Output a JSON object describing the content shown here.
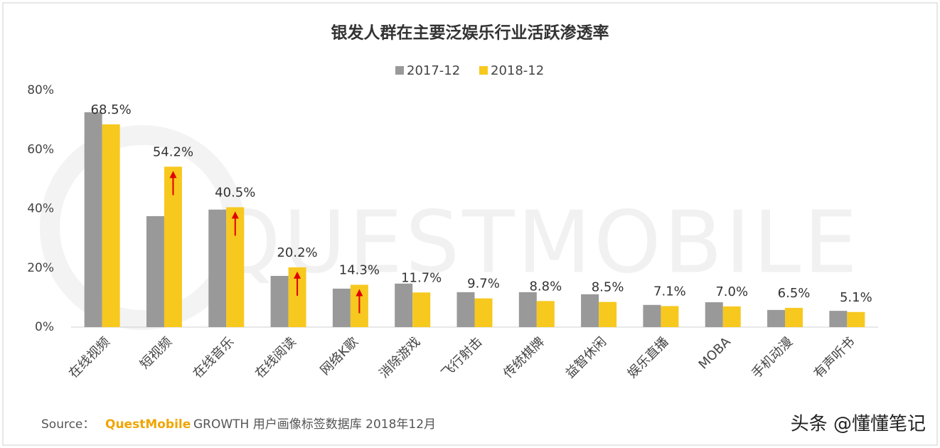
{
  "chart_data": {
    "type": "bar",
    "title": "银发人群在主要泛娱乐行业活跃渗透率",
    "categories": [
      "在线视频",
      "短视频",
      "在线音乐",
      "在线阅读",
      "网络K歌",
      "消除游戏",
      "飞行射击",
      "传统棋牌",
      "益智休闲",
      "娱乐直播",
      "MOBA",
      "手机动漫",
      "有声听书"
    ],
    "series": [
      {
        "name": "2017-12",
        "color": "#999999",
        "values": [
          72.6,
          37.5,
          39.7,
          17.3,
          13.0,
          14.7,
          11.8,
          11.8,
          11.1,
          7.5,
          8.4,
          5.8,
          5.5
        ]
      },
      {
        "name": "2018-12",
        "color": "#f7c81e",
        "values": [
          68.5,
          54.2,
          40.5,
          20.2,
          14.3,
          11.7,
          9.7,
          8.8,
          8.5,
          7.1,
          7.0,
          6.5,
          5.1
        ],
        "value_labels": [
          "68.5%",
          "54.2%",
          "40.5%",
          "20.2%",
          "14.3%",
          "11.7%",
          "9.7%",
          "8.8%",
          "8.5%",
          "7.1%",
          "7.0%",
          "6.5%",
          "5.1%"
        ]
      }
    ],
    "highlight_arrows": [
      1,
      2,
      3,
      4
    ],
    "arrow_color": "#e00000",
    "ylim": [
      0,
      80
    ],
    "yticks": [
      {
        "value": 0,
        "label": "0%"
      },
      {
        "value": 20,
        "label": "20%"
      },
      {
        "value": 40,
        "label": "40%"
      },
      {
        "value": 60,
        "label": "60%"
      },
      {
        "value": 80,
        "label": "80%"
      }
    ],
    "grid": false,
    "legend": "top",
    "background_watermark": "QUESTMOBILE"
  },
  "footer": {
    "source_prefix": "Source：",
    "source_brand": "QuestMobile",
    "source_text": "GROWTH 用户画像标签数据库 2018年12月",
    "watermark": "头条 @懂懂笔记"
  }
}
